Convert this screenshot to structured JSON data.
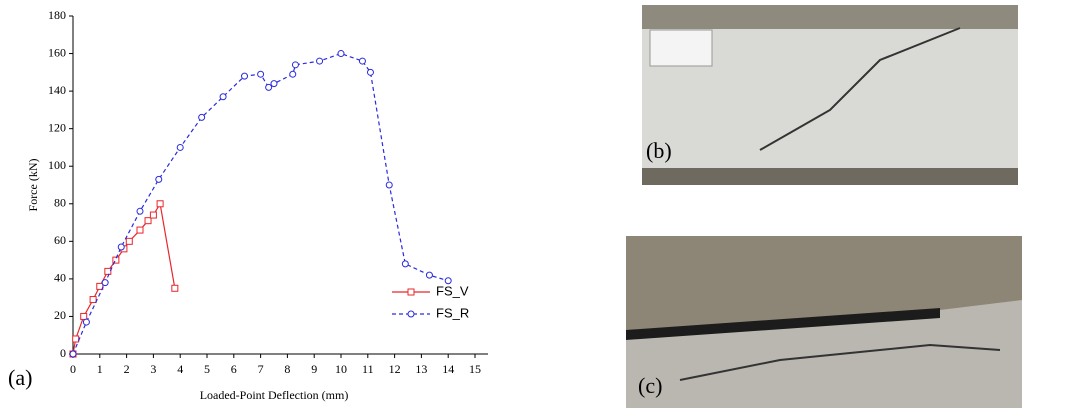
{
  "chart_data": {
    "type": "line",
    "xlabel": "Loaded-Point Deflection (mm)",
    "ylabel": "Force (kN)",
    "xlim": [
      0,
      15
    ],
    "xticks": [
      0,
      1,
      2,
      3,
      4,
      5,
      6,
      7,
      8,
      9,
      10,
      11,
      12,
      13,
      14,
      15
    ],
    "ylim": [
      0,
      180
    ],
    "yticks": [
      0,
      20,
      40,
      60,
      80,
      100,
      120,
      140,
      160,
      180
    ],
    "legend": "lower right",
    "series": [
      {
        "name": "FS_V",
        "color": "#e8262a",
        "dash": "solid",
        "marker": "square",
        "x": [
          0,
          0.1,
          0.4,
          0.75,
          1.0,
          1.3,
          1.6,
          1.9,
          2.1,
          2.5,
          2.8,
          3.0,
          3.25,
          3.8
        ],
        "values": [
          0,
          8,
          20,
          29,
          36,
          44,
          50,
          56,
          60,
          66,
          71,
          74,
          80,
          35
        ]
      },
      {
        "name": "FS_R",
        "color": "#2a2ae0",
        "dash": "dashed",
        "marker": "circle",
        "x": [
          0,
          0.5,
          1.2,
          1.8,
          2.5,
          3.2,
          4.0,
          4.8,
          5.6,
          6.4,
          7.0,
          7.3,
          7.5,
          8.2,
          8.3,
          9.2,
          10.0,
          10.8,
          11.1,
          11.8,
          12.4,
          13.3,
          14.0
        ],
        "values": [
          0,
          17,
          38,
          57,
          76,
          93,
          110,
          126,
          137,
          148,
          149,
          142,
          144,
          149,
          154,
          156,
          160,
          156,
          150,
          90,
          48,
          42,
          39
        ]
      }
    ]
  },
  "panels": {
    "a": "(a)",
    "b": "(b)",
    "c": "(c)"
  }
}
